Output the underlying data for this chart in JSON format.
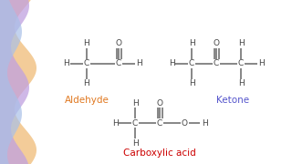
{
  "bg_color": "#ffffff",
  "aldehyde_color": "#e07820",
  "ketone_color": "#5555cc",
  "carboxylic_color": "#cc0000",
  "bond_color": "#666666",
  "atom_color": "#444444",
  "aldehyde_label": "Aldehyde",
  "ketone_label": "Ketone",
  "carboxylic_label": "Carboxylic acid",
  "figsize": [
    3.2,
    1.8
  ],
  "dpi": 100
}
